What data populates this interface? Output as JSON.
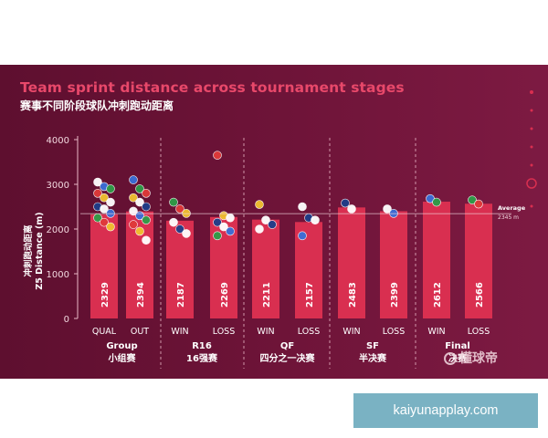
{
  "title": "Team sprint distance across tournament stages",
  "subtitle": "赛事不同阶段球队冲刺跑动距离",
  "ylabel_zh": "冲刺跑动距离",
  "ylabel_en": "Z5 Distance (m)",
  "watermark": "懂球帝",
  "badge_text": "kaiyunapplay.com",
  "colors": {
    "bar": "#d92f50",
    "accent": "#e8486a",
    "panel": "#6c1337"
  },
  "chart_data": {
    "type": "bar",
    "title": "Team sprint distance across tournament stages",
    "subtitle": "赛事不同阶段球队冲刺跑动距离",
    "ylabel": "Z5 Distance (m)",
    "ylim": [
      0,
      4000
    ],
    "yticks": [
      0,
      1000,
      2000,
      3000,
      4000
    ],
    "grid": false,
    "categories": [
      "QUAL",
      "OUT",
      "WIN",
      "LOSS",
      "WIN",
      "LOSS",
      "WIN",
      "LOSS",
      "WIN",
      "LOSS"
    ],
    "values": [
      2329,
      2394,
      2187,
      2269,
      2211,
      2157,
      2483,
      2399,
      2612,
      2566
    ],
    "groups": [
      {
        "label": "Group",
        "label_zh": "小组赛",
        "span": [
          0,
          1
        ]
      },
      {
        "label": "R16",
        "label_zh": "16强赛",
        "span": [
          2,
          3
        ]
      },
      {
        "label": "QF",
        "label_zh": "四分之一决赛",
        "span": [
          4,
          5
        ]
      },
      {
        "label": "SF",
        "label_zh": "半决赛",
        "span": [
          6,
          7
        ]
      },
      {
        "label": "Final",
        "label_zh": "决赛",
        "span": [
          8,
          9
        ]
      }
    ],
    "average": {
      "value": 2345,
      "label": "Average",
      "value_label": "2345 m"
    },
    "team_markers": [
      {
        "bar": 0,
        "values": [
          3050,
          2950,
          2900,
          2800,
          2700,
          2600,
          2500,
          2450,
          2350,
          2250,
          2150,
          2050
        ]
      },
      {
        "bar": 1,
        "values": [
          3100,
          2900,
          2800,
          2700,
          2600,
          2500,
          2400,
          2300,
          2200,
          2100,
          1950,
          1750
        ]
      },
      {
        "bar": 2,
        "values": [
          2600,
          2450,
          2350,
          2150,
          2000,
          1900
        ]
      },
      {
        "bar": 3,
        "values": [
          3650,
          2300,
          2250,
          2150,
          2050,
          1950,
          1850
        ]
      },
      {
        "bar": 4,
        "values": [
          2550,
          2200,
          2100,
          2000
        ]
      },
      {
        "bar": 5,
        "values": [
          2500,
          2250,
          2200,
          1850
        ]
      },
      {
        "bar": 6,
        "values": [
          2580,
          2450
        ]
      },
      {
        "bar": 7,
        "values": [
          2450,
          2350
        ]
      },
      {
        "bar": 8,
        "values": [
          2680,
          2600
        ]
      },
      {
        "bar": 9,
        "values": [
          2650,
          2560
        ]
      }
    ]
  }
}
